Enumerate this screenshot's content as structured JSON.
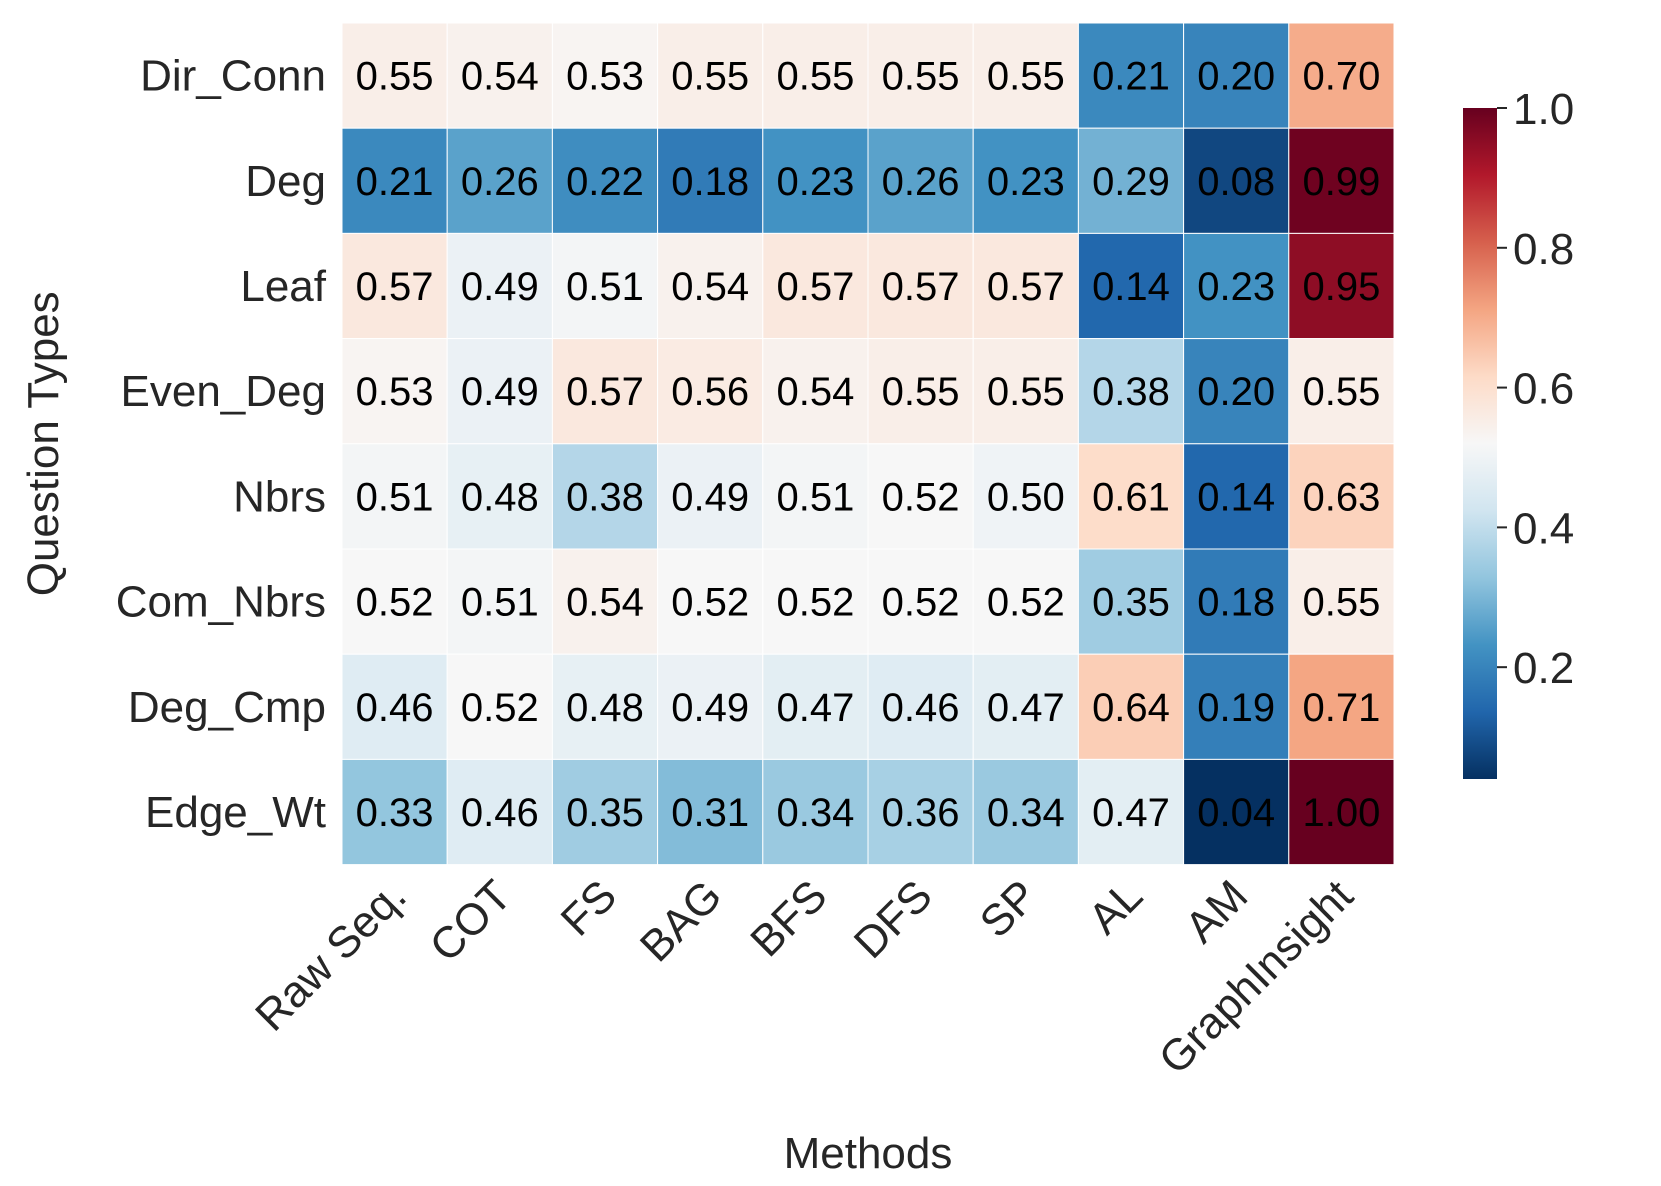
{
  "chart_data": {
    "type": "heatmap",
    "title": "",
    "xlabel": "Methods",
    "ylabel": "Question Types",
    "columns": [
      "Raw Seq.",
      "COT",
      "FS",
      "BAG",
      "BFS",
      "DFS",
      "SP",
      "AL",
      "AM",
      "GraphInsight"
    ],
    "rows": [
      "Dir_Conn",
      "Deg",
      "Leaf",
      "Even_Deg",
      "Nbrs",
      "Com_Nbrs",
      "Deg_Cmp",
      "Edge_Wt"
    ],
    "values": [
      [
        0.55,
        0.54,
        0.53,
        0.55,
        0.55,
        0.55,
        0.55,
        0.21,
        0.2,
        0.7
      ],
      [
        0.21,
        0.26,
        0.22,
        0.18,
        0.23,
        0.26,
        0.23,
        0.29,
        0.08,
        0.99
      ],
      [
        0.57,
        0.49,
        0.51,
        0.54,
        0.57,
        0.57,
        0.57,
        0.14,
        0.23,
        0.95
      ],
      [
        0.53,
        0.49,
        0.57,
        0.56,
        0.54,
        0.55,
        0.55,
        0.38,
        0.2,
        0.55
      ],
      [
        0.51,
        0.48,
        0.38,
        0.49,
        0.51,
        0.52,
        0.5,
        0.61,
        0.14,
        0.63
      ],
      [
        0.52,
        0.51,
        0.54,
        0.52,
        0.52,
        0.52,
        0.52,
        0.35,
        0.18,
        0.55
      ],
      [
        0.46,
        0.52,
        0.48,
        0.49,
        0.47,
        0.46,
        0.47,
        0.64,
        0.19,
        0.71
      ],
      [
        0.33,
        0.46,
        0.35,
        0.31,
        0.34,
        0.36,
        0.34,
        0.47,
        0.04,
        1.0
      ]
    ],
    "labels": [
      [
        "0.55",
        "0.54",
        "0.53",
        "0.55",
        "0.55",
        "0.55",
        "0.55",
        "0.21",
        "0.20",
        "0.70"
      ],
      [
        "0.21",
        "0.26",
        "0.22",
        "0.18",
        "0.23",
        "0.26",
        "0.23",
        "0.29",
        "0.08",
        "0.99"
      ],
      [
        "0.57",
        "0.49",
        "0.51",
        "0.54",
        "0.57",
        "0.57",
        "0.57",
        "0.14",
        "0.23",
        "0.95"
      ],
      [
        "0.53",
        "0.49",
        "0.57",
        "0.56",
        "0.54",
        "0.55",
        "0.55",
        "0.38",
        "0.20",
        "0.55"
      ],
      [
        "0.51",
        "0.48",
        "0.38",
        "0.49",
        "0.51",
        "0.52",
        "0.50",
        "0.61",
        "0.14",
        "0.63"
      ],
      [
        "0.52",
        "0.51",
        "0.54",
        "0.52",
        "0.52",
        "0.52",
        "0.52",
        "0.35",
        "0.18",
        "0.55"
      ],
      [
        "0.46",
        "0.52",
        "0.48",
        "0.49",
        "0.47",
        "0.46",
        "0.47",
        "0.64",
        "0.19",
        "0.71"
      ],
      [
        "0.33",
        "0.46",
        "0.35",
        "0.31",
        "0.34",
        "0.36",
        "0.34",
        "0.47",
        "0.04",
        "1.00"
      ]
    ],
    "colorbar": {
      "min": 0.04,
      "max": 1.0,
      "ticks": [
        0.2,
        0.4,
        0.6,
        0.8,
        1.0
      ],
      "tick_labels": [
        "0.2",
        "0.4",
        "0.6",
        "0.8",
        "1.0"
      ],
      "colormap": "RdBu_r",
      "stops": [
        "#053061",
        "#2166ac",
        "#4393c3",
        "#92c5de",
        "#d1e5f0",
        "#f7f7f7",
        "#fddbc7",
        "#f4a582",
        "#d6604d",
        "#b2182b",
        "#67001f"
      ]
    }
  }
}
